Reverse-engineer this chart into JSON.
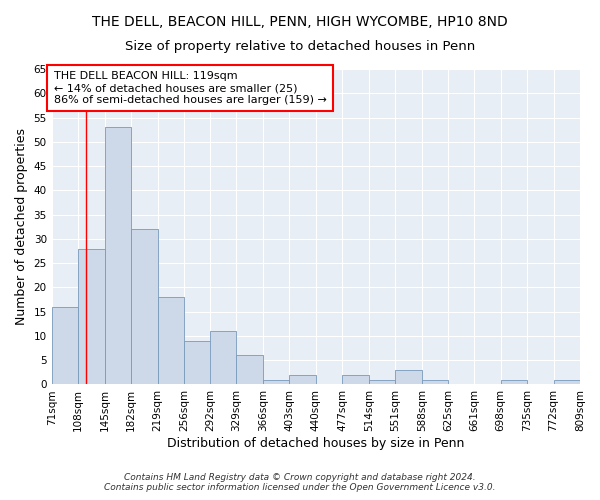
{
  "title": "THE DELL, BEACON HILL, PENN, HIGH WYCOMBE, HP10 8ND",
  "subtitle": "Size of property relative to detached houses in Penn",
  "xlabel": "Distribution of detached houses by size in Penn",
  "ylabel": "Number of detached properties",
  "bar_color": "#cdd9e8",
  "bar_edge_color": "#7799bb",
  "background_color": "#e8eef5",
  "grid_color": "#ffffff",
  "red_line_x": 119,
  "annotation_text": "THE DELL BEACON HILL: 119sqm\n← 14% of detached houses are smaller (25)\n86% of semi-detached houses are larger (159) →",
  "bins": [
    71,
    108,
    145,
    182,
    219,
    256,
    292,
    329,
    366,
    403,
    440,
    477,
    514,
    551,
    588,
    625,
    661,
    698,
    735,
    772,
    809
  ],
  "values": [
    16,
    28,
    53,
    32,
    18,
    9,
    11,
    6,
    1,
    2,
    0,
    2,
    1,
    3,
    1,
    0,
    0,
    1,
    0,
    1
  ],
  "ylim": [
    0,
    65
  ],
  "yticks": [
    0,
    5,
    10,
    15,
    20,
    25,
    30,
    35,
    40,
    45,
    50,
    55,
    60,
    65
  ],
  "footnote": "Contains HM Land Registry data © Crown copyright and database right 2024.\nContains public sector information licensed under the Open Government Licence v3.0.",
  "title_fontsize": 10,
  "subtitle_fontsize": 9.5,
  "annotation_fontsize": 8,
  "tick_fontsize": 7.5,
  "label_fontsize": 9
}
